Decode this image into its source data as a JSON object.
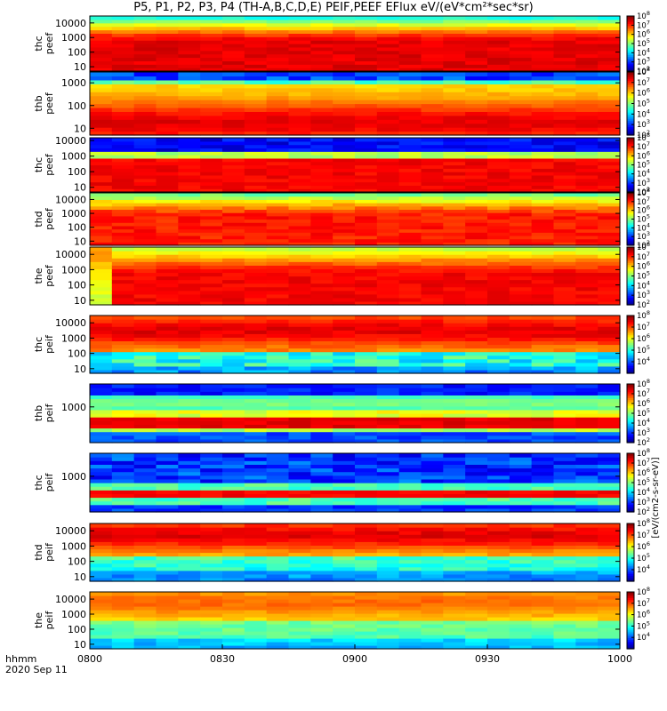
{
  "title": "P5, P1, P2, P3, P4 (TH-A,B,C,D,E) PEIF,PEEF EFlux eV/(eV*cm²*sec*sr)",
  "time_axis_label_1": "hhmm",
  "time_axis_label_2": "2020 Sep 11",
  "colorbar_units": "[eV/(cm2-s-sr-eV)]",
  "chart_data": [
    {
      "type": "heatmap",
      "ylabel": [
        "thc",
        "peef"
      ],
      "yticks": [
        "10000",
        "1000",
        "100",
        "10"
      ],
      "ylim": [
        5,
        30000
      ],
      "clim_exp": [
        2,
        8
      ],
      "cbar_ticks_exp": [
        2,
        3,
        4,
        5,
        6,
        7,
        8
      ],
      "x_range": [
        "0800",
        "1000"
      ],
      "profile": "electron_a"
    },
    {
      "type": "heatmap",
      "ylabel": [
        "thb",
        "peef"
      ],
      "yticks": [
        "1000",
        "100",
        "10"
      ],
      "ylim": [
        5,
        3000
      ],
      "clim_exp": [
        2,
        8
      ],
      "cbar_ticks_exp": [
        2,
        3,
        4,
        5,
        6,
        7,
        8
      ],
      "x_range": [
        "0800",
        "1000"
      ],
      "profile": "electron_b"
    },
    {
      "type": "heatmap",
      "ylabel": [
        "thc",
        "peef"
      ],
      "yticks": [
        "10000",
        "1000",
        "100",
        "10"
      ],
      "ylim": [
        5,
        15000
      ],
      "clim_exp": [
        2,
        8
      ],
      "cbar_ticks_exp": [
        2,
        3,
        4,
        5,
        6,
        7,
        8
      ],
      "x_range": [
        "0800",
        "1000"
      ],
      "profile": "electron_c"
    },
    {
      "type": "heatmap",
      "ylabel": [
        "thd",
        "peef"
      ],
      "yticks": [
        "10000",
        "1000",
        "100",
        "10"
      ],
      "ylim": [
        5,
        30000
      ],
      "clim_exp": [
        2,
        8
      ],
      "cbar_ticks_exp": [
        2,
        3,
        4,
        5,
        6,
        7,
        8
      ],
      "x_range": [
        "0800",
        "1000"
      ],
      "profile": "electron_d"
    },
    {
      "type": "heatmap",
      "ylabel": [
        "the",
        "peef"
      ],
      "yticks": [
        "10000",
        "1000",
        "100",
        "10"
      ],
      "ylim": [
        5,
        30000
      ],
      "clim_exp": [
        2,
        8
      ],
      "cbar_ticks_exp": [
        2,
        3,
        4,
        5,
        6,
        7,
        8
      ],
      "x_range": [
        "0800",
        "1000"
      ],
      "profile": "electron_e"
    },
    {
      "type": "heatmap",
      "ylabel": [
        "thc",
        "peif"
      ],
      "yticks": [
        "10000",
        "1000",
        "100",
        "10"
      ],
      "ylim": [
        5,
        30000
      ],
      "clim_exp": [
        3,
        8
      ],
      "cbar_ticks_exp": [
        4,
        5,
        6,
        7,
        8
      ],
      "x_range": [
        "0800",
        "1000"
      ],
      "profile": "ion_a"
    },
    {
      "type": "heatmap",
      "ylabel": [
        "thb",
        "peif"
      ],
      "yticks": [
        "1000"
      ],
      "ylim": [
        5,
        30000
      ],
      "clim_exp": [
        2,
        8
      ],
      "cbar_ticks_exp": [
        2,
        3,
        4,
        5,
        6,
        7,
        8
      ],
      "x_range": [
        "0800",
        "1000"
      ],
      "profile": "ion_b"
    },
    {
      "type": "heatmap",
      "ylabel": [
        "thc",
        "peif"
      ],
      "yticks": [
        "1000"
      ],
      "ylim": [
        5,
        30000
      ],
      "clim_exp": [
        2,
        8
      ],
      "cbar_ticks_exp": [
        2,
        3,
        4,
        5,
        6,
        7,
        8
      ],
      "x_range": [
        "0800",
        "1000"
      ],
      "profile": "ion_c"
    },
    {
      "type": "heatmap",
      "ylabel": [
        "thd",
        "peif"
      ],
      "yticks": [
        "10000",
        "1000",
        "100",
        "10"
      ],
      "ylim": [
        5,
        30000
      ],
      "clim_exp": [
        3,
        8
      ],
      "cbar_ticks_exp": [
        4,
        5,
        6,
        7,
        8
      ],
      "x_range": [
        "0800",
        "1000"
      ],
      "profile": "ion_d"
    },
    {
      "type": "heatmap",
      "ylabel": [
        "the",
        "peif"
      ],
      "yticks": [
        "10000",
        "1000",
        "100",
        "10"
      ],
      "ylim": [
        5,
        30000
      ],
      "clim_exp": [
        3,
        8
      ],
      "cbar_ticks_exp": [
        4,
        5,
        6,
        7,
        8
      ],
      "x_range": [
        "0800",
        "1000"
      ],
      "profile": "ion_e"
    }
  ],
  "x_axis": {
    "ticks": [
      "0800",
      "0830",
      "0900",
      "0930",
      "1000"
    ]
  }
}
